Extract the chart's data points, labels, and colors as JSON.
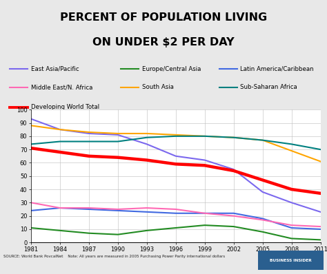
{
  "title_line1": "PERCENT OF POPULATION LIVING",
  "title_line2": "ON UNDER $2 PER DAY",
  "background_color": "#e8e8e8",
  "years": [
    1981,
    1984,
    1987,
    1990,
    1993,
    1996,
    1999,
    2002,
    2005,
    2008,
    2011
  ],
  "series": {
    "East Asia/Pacific": {
      "color": "#7b68ee",
      "linewidth": 1.5,
      "values": [
        93,
        85,
        82,
        81,
        74,
        65,
        62,
        55,
        38,
        30,
        23
      ]
    },
    "Europe/Central Asia": {
      "color": "#228B22",
      "linewidth": 1.5,
      "values": [
        11,
        9,
        7,
        6,
        9,
        11,
        13,
        12,
        8,
        3,
        2
      ]
    },
    "Latin America/Caribbean": {
      "color": "#4169e1",
      "linewidth": 1.5,
      "values": [
        24,
        26,
        25,
        24,
        23,
        22,
        22,
        22,
        18,
        11,
        10
      ]
    },
    "Middle East/N. Africa": {
      "color": "#ff69b4",
      "linewidth": 1.5,
      "values": [
        30,
        26,
        26,
        25,
        26,
        25,
        22,
        20,
        17,
        13,
        12
      ]
    },
    "South Asia": {
      "color": "#ffa500",
      "linewidth": 1.5,
      "values": [
        88,
        85,
        83,
        82,
        82,
        81,
        80,
        79,
        77,
        69,
        61
      ]
    },
    "Sub-Saharan Africa": {
      "color": "#008080",
      "linewidth": 1.5,
      "values": [
        74,
        76,
        76,
        76,
        79,
        80,
        80,
        79,
        77,
        74,
        70
      ]
    },
    "Developing World Total": {
      "color": "#ff0000",
      "linewidth": 3.2,
      "values": [
        71,
        68,
        65,
        64,
        62,
        59,
        58,
        54,
        47,
        40,
        37
      ]
    }
  },
  "legend_order": [
    "East Asia/Pacific",
    "Europe/Central Asia",
    "Latin America/Caribbean",
    "Middle East/N. Africa",
    "South Asia",
    "Sub-Saharan Africa",
    "Developing World Total"
  ],
  "legend_row1": [
    "East Asia/Pacific",
    "Europe/Central Asia",
    "Latin America/Caribbean"
  ],
  "legend_row2": [
    "Middle East/N. Africa",
    "South Asia",
    "Sub-Saharan Africa"
  ],
  "legend_row3": [
    "Developing World Total"
  ],
  "ylim": [
    0,
    100
  ],
  "yticks": [
    0,
    10,
    20,
    30,
    40,
    50,
    60,
    70,
    80,
    90,
    100
  ],
  "source_text": "SOURCE: World Bank PovcalNet    Note: All years are measured in 2005 Purchasing Power Parity international dollars",
  "badge_color": "#2a5f8f",
  "badge_text": "BUSINESS INSIDER"
}
